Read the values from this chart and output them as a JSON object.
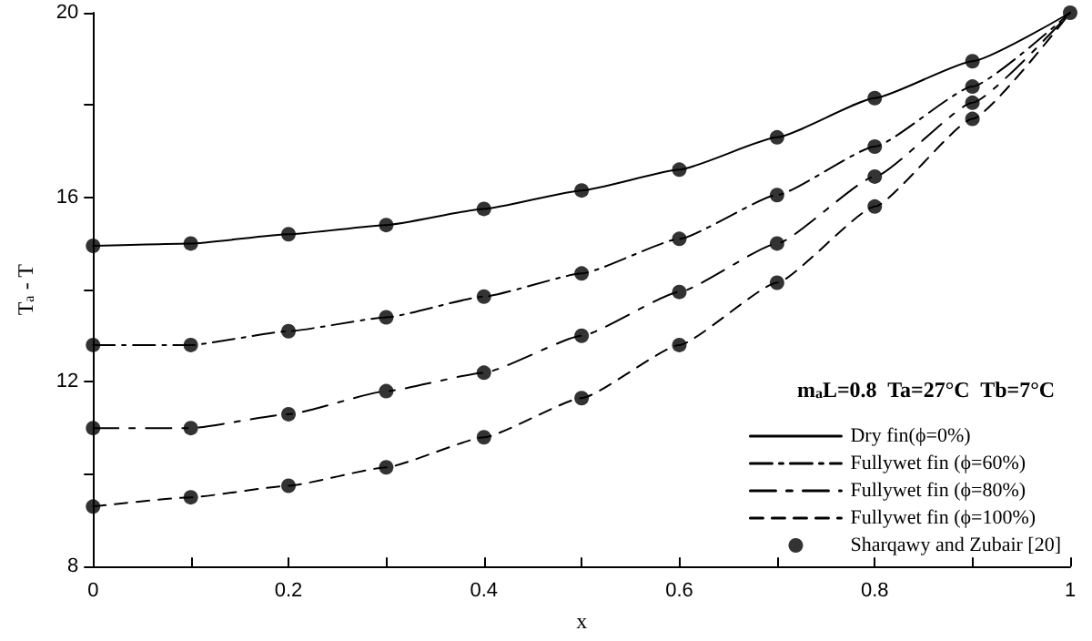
{
  "chart_data": {
    "type": "line",
    "xlabel": "x",
    "ylabel": "T$_{a}$ - T",
    "legend_title": "m$_{a}$L=0.8  Ta=27°C  Tb=7°C",
    "x": [
      0,
      0.1,
      0.2,
      0.3,
      0.4,
      0.5,
      0.6,
      0.7,
      0.8,
      0.9,
      1
    ],
    "xlim": [
      0,
      1
    ],
    "xticks": [
      0,
      {
        "value": 0.1,
        "label": null
      },
      0.2,
      {
        "value": 0.3,
        "label": null
      },
      0.4,
      {
        "value": 0.5,
        "label": null
      },
      0.6,
      {
        "value": 0.7,
        "label": null
      },
      0.8,
      {
        "value": 0.9,
        "label": null
      },
      1
    ],
    "ylim": [
      8,
      20
    ],
    "yticks": [
      8,
      {
        "value": 10,
        "label": null
      },
      12,
      {
        "value": 14,
        "label": null
      },
      16,
      {
        "value": 18,
        "label": null
      },
      20
    ],
    "grid": false,
    "legend": "bottom right",
    "marker": "none",
    "series": [
      {
        "name": "Dry fin(ϕ=0%)",
        "color": "#000000",
        "line_style": "solid",
        "values": [
          14.95,
          15.0,
          15.2,
          15.4,
          15.75,
          16.15,
          16.6,
          17.3,
          18.15,
          18.95,
          20
        ]
      },
      {
        "name": "Fullywet fin (ϕ=60%)",
        "color": "#000000",
        "line_style": "dashdot",
        "values": [
          12.8,
          12.8,
          13.1,
          13.4,
          13.85,
          14.35,
          15.1,
          16.05,
          17.1,
          18.4,
          20
        ]
      },
      {
        "name": "Fullywet fin (ϕ=80%)",
        "color": "#000000",
        "line_style": "longdash",
        "values": [
          11.0,
          11.0,
          11.3,
          11.8,
          12.2,
          13.0,
          13.95,
          15.0,
          16.45,
          18.05,
          20
        ]
      },
      {
        "name": "Fullywet fin (ϕ=100%)",
        "color": "#000000",
        "line_style": "dashed",
        "values": [
          9.3,
          9.5,
          9.75,
          10.15,
          10.8,
          11.65,
          12.8,
          14.15,
          15.8,
          17.7,
          20
        ]
      },
      {
        "name": "Sharqawy and Zubair [20]",
        "type": "scatter",
        "marker": "circle",
        "color": "#000000",
        "x": [
          0,
          0.1,
          0.2,
          0.3,
          0.4,
          0.5,
          0.6,
          0.7,
          0.8,
          0.9,
          1,
          0,
          0.1,
          0.2,
          0.3,
          0.4,
          0.5,
          0.6,
          0.7,
          0.8,
          0.9,
          0,
          0.1,
          0.2,
          0.3,
          0.4,
          0.5,
          0.6,
          0.7,
          0.8,
          0.9,
          0,
          0.1,
          0.2,
          0.3,
          0.4,
          0.5,
          0.6,
          0.7,
          0.8,
          0.9
        ],
        "values": [
          14.95,
          15.0,
          15.2,
          15.4,
          15.75,
          16.15,
          16.6,
          17.3,
          18.15,
          18.95,
          20,
          12.8,
          12.8,
          13.1,
          13.4,
          13.85,
          14.35,
          15.1,
          16.05,
          17.1,
          18.4,
          11.0,
          11.0,
          11.3,
          11.8,
          12.2,
          13.0,
          13.95,
          15.0,
          16.45,
          18.05,
          9.3,
          9.5,
          9.75,
          10.15,
          10.8,
          11.65,
          12.8,
          14.15,
          15.8,
          17.7
        ]
      }
    ]
  }
}
